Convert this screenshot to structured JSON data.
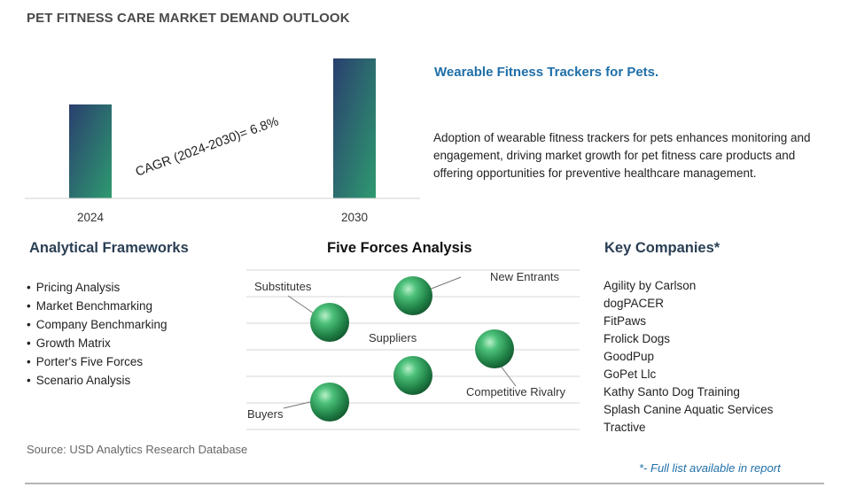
{
  "title": "PET FITNESS CARE MARKET DEMAND OUTLOOK",
  "chart_data": {
    "type": "bar",
    "categories": [
      "2024",
      "2030"
    ],
    "values": [
      1.0,
      1.49
    ],
    "annotation": "CAGR (2024-2030)=  6.8%",
    "title": "",
    "xlabel": "",
    "ylabel": "",
    "grid": false,
    "colors": [
      "#2e8a73",
      "#2a4d6e"
    ]
  },
  "highlight": {
    "heading": "Wearable Fitness Trackers for Pets.",
    "text": "Adoption of wearable fitness trackers for pets enhances monitoring and engagement, driving market growth for pet fitness care products and offering opportunities for preventive healthcare management."
  },
  "frameworks": {
    "heading": "Analytical Frameworks",
    "items": [
      "Pricing Analysis",
      "Market Benchmarking",
      "Company Benchmarking",
      "Growth Matrix",
      "Porter's Five Forces",
      "Scenario Analysis"
    ]
  },
  "five_forces": {
    "heading": "Five Forces Analysis",
    "labels": {
      "new_entrants": "New Entrants",
      "substitutes": "Substitutes",
      "suppliers": "Suppliers",
      "competitive_rivalry": "Competitive Rivalry",
      "buyers": "Buyers"
    },
    "sphere_color": "#2e9a5a"
  },
  "companies": {
    "heading": "Key Companies*",
    "items": [
      "Agility by Carlson",
      "dogPACER",
      "FitPaws",
      "Frolick Dogs",
      "GoodPup",
      "GoPet Llc",
      "Kathy Santo Dog Training",
      "Splash Canine Aquatic Services",
      "Tractive"
    ]
  },
  "source": "Source: USD Analytics Research Database",
  "footnote": "*- Full list available in report"
}
